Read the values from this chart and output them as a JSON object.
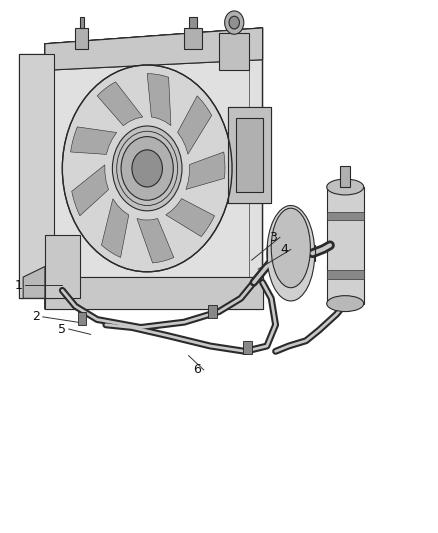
{
  "background_color": "#ffffff",
  "fig_width": 4.38,
  "fig_height": 5.33,
  "dpi": 100,
  "line_color": "#2a2a2a",
  "label_fontsize": 9,
  "callouts": {
    "1": {
      "label": [
        0.055,
        0.535
      ],
      "point": [
        0.14,
        0.535
      ]
    },
    "2": {
      "label": [
        0.095,
        0.595
      ],
      "point": [
        0.175,
        0.605
      ]
    },
    "3": {
      "label": [
        0.64,
        0.445
      ],
      "point": [
        0.575,
        0.488
      ]
    },
    "4": {
      "label": [
        0.665,
        0.468
      ],
      "point": [
        0.59,
        0.505
      ]
    },
    "5": {
      "label": [
        0.155,
        0.618
      ],
      "point": [
        0.205,
        0.628
      ]
    },
    "6": {
      "label": [
        0.465,
        0.695
      ],
      "point": [
        0.43,
        0.668
      ]
    }
  }
}
